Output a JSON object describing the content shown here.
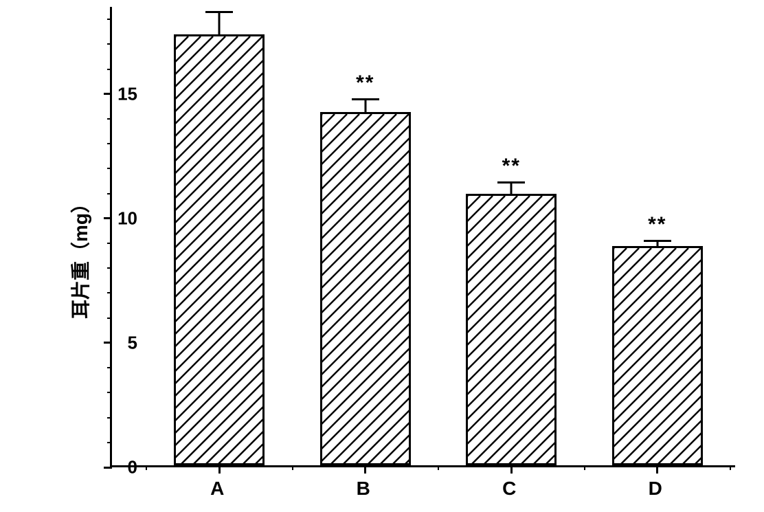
{
  "chart": {
    "type": "bar",
    "ylabel": "耳片重（mg）",
    "label_fontsize": 28,
    "ylim_min": 0,
    "ylim_max": 18.5,
    "ytick_major_step": 5,
    "ytick_minor_step": 1,
    "yticks_major": [
      0,
      5,
      10,
      15
    ],
    "background_color": "#ffffff",
    "axis_color": "#000000",
    "bar_border_color": "#000000",
    "bar_fill_color": "#ffffff",
    "hatch_pattern": "diagonal",
    "hatch_color": "#000000",
    "hatch_spacing": 18,
    "bar_width_ratio": 0.62,
    "bar_border_width": 3,
    "error_cap_width": 40,
    "error_line_width": 3,
    "font_family": "Arial",
    "categories": [
      {
        "label": "A",
        "value": 17.3,
        "error": 1.0,
        "sig": ""
      },
      {
        "label": "B",
        "value": 14.2,
        "error": 0.6,
        "sig": "**"
      },
      {
        "label": "C",
        "value": 10.9,
        "error": 0.55,
        "sig": "**"
      },
      {
        "label": "D",
        "value": 8.8,
        "error": 0.3,
        "sig": "**"
      }
    ]
  }
}
